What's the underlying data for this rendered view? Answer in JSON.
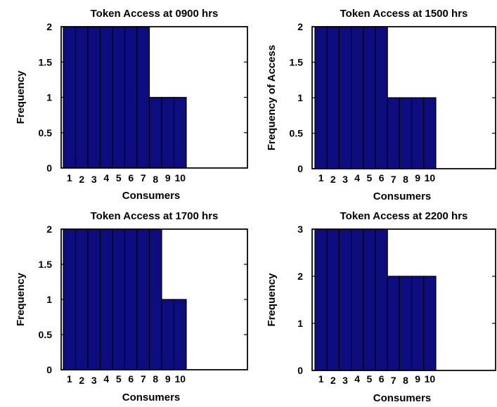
{
  "chart_data": [
    {
      "type": "bar",
      "title": "Token Access at 0900 hrs",
      "xlabel": "Consumers",
      "ylabel": "Frequency",
      "categories": [
        "1",
        "2",
        "3",
        "4",
        "5",
        "6",
        "7",
        "8",
        "9",
        "10"
      ],
      "values": [
        2,
        2,
        2,
        2,
        2,
        2,
        2,
        1,
        1,
        1
      ],
      "ylim": [
        0,
        2
      ],
      "yticks": [
        "0",
        "0.5",
        "1",
        "1.5",
        "2"
      ],
      "ytick_values": [
        0,
        0.5,
        1,
        1.5,
        2
      ],
      "bar_color": "#0d0d80",
      "grid": false
    },
    {
      "type": "bar",
      "title": "Token Access at 1500 hrs",
      "xlabel": "Consumers",
      "ylabel": "Frequency of Access",
      "categories": [
        "1",
        "2",
        "3",
        "4",
        "5",
        "6",
        "7",
        "8",
        "9",
        "10"
      ],
      "values": [
        2,
        2,
        2,
        2,
        2,
        2,
        1,
        1,
        1,
        1
      ],
      "ylim": [
        0,
        2
      ],
      "yticks": [
        "0",
        "0.5",
        "1",
        "1.5",
        "2"
      ],
      "ytick_values": [
        0,
        0.5,
        1,
        1.5,
        2
      ],
      "bar_color": "#0d0d80",
      "grid": false
    },
    {
      "type": "bar",
      "title": "Token Access at 1700 hrs",
      "xlabel": "Consumers",
      "ylabel": "Frequency",
      "categories": [
        "1",
        "2",
        "3",
        "4",
        "5",
        "6",
        "7",
        "8",
        "9",
        "10"
      ],
      "values": [
        2,
        2,
        2,
        2,
        2,
        2,
        2,
        2,
        1,
        1
      ],
      "ylim": [
        0,
        2
      ],
      "yticks": [
        "0",
        "0.5",
        "1",
        "1.5",
        "2"
      ],
      "ytick_values": [
        0,
        0.5,
        1,
        1.5,
        2
      ],
      "bar_color": "#0d0d80",
      "grid": false
    },
    {
      "type": "bar",
      "title": "Token Access at 2200 hrs",
      "xlabel": "Consumers",
      "ylabel": "Frequency",
      "categories": [
        "1",
        "2",
        "3",
        "4",
        "5",
        "6",
        "7",
        "8",
        "9",
        "10"
      ],
      "values": [
        3,
        3,
        3,
        3,
        3,
        3,
        2,
        2,
        2,
        2
      ],
      "ylim": [
        0,
        3
      ],
      "yticks": [
        "0",
        "1",
        "2",
        "3"
      ],
      "ytick_values": [
        0,
        1,
        2,
        3
      ],
      "bar_color": "#0d0d80",
      "grid": false
    }
  ]
}
